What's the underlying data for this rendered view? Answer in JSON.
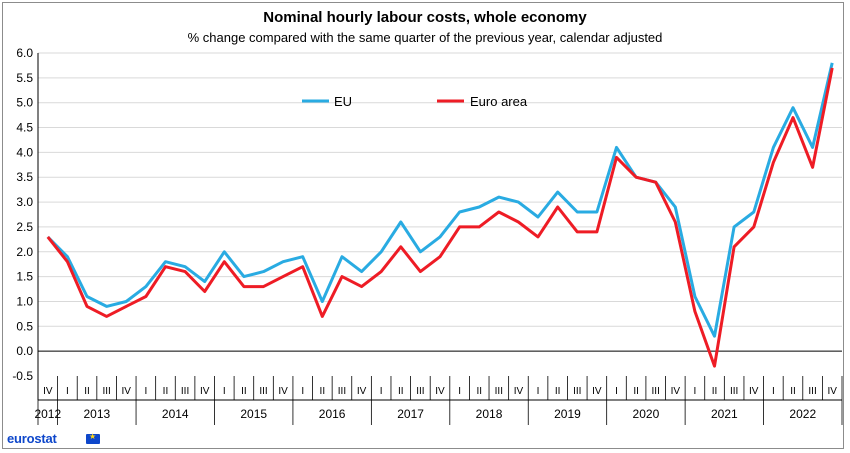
{
  "chart_data": {
    "type": "line",
    "title": "Nominal hourly labour costs, whole economy",
    "subtitle": "% change compared with the same quarter of the previous year, calendar adjusted",
    "ylim": [
      -0.5,
      6.0
    ],
    "yticks": [
      "6.0",
      "5.5",
      "5.0",
      "4.5",
      "4.0",
      "3.5",
      "3.0",
      "2.5",
      "2.0",
      "1.5",
      "1.0",
      "0.5",
      "0.0",
      "-0.5"
    ],
    "grid": "horizontal",
    "legend_placement": "top-center",
    "quarter_labels": [
      "IV",
      "I",
      "II",
      "III",
      "IV",
      "I",
      "II",
      "III",
      "IV",
      "I",
      "II",
      "III",
      "IV",
      "I",
      "II",
      "III",
      "IV",
      "I",
      "II",
      "III",
      "IV",
      "I",
      "II",
      "III",
      "IV",
      "I",
      "II",
      "III",
      "IV",
      "I",
      "II",
      "III",
      "IV",
      "I",
      "II",
      "III",
      "IV",
      "I",
      "II",
      "III",
      "IV"
    ],
    "year_labels": [
      "2012",
      "2013",
      "2014",
      "2015",
      "2016",
      "2017",
      "2018",
      "2019",
      "2020",
      "2021",
      "2022"
    ],
    "series": [
      {
        "name": "EU",
        "color": "#29abe2",
        "values": [
          2.3,
          1.9,
          1.1,
          0.9,
          1.0,
          1.3,
          1.8,
          1.7,
          1.4,
          2.0,
          1.5,
          1.6,
          1.8,
          1.9,
          1.0,
          1.9,
          1.6,
          2.0,
          2.6,
          2.0,
          2.3,
          2.8,
          2.9,
          3.1,
          3.0,
          2.7,
          3.2,
          2.8,
          2.8,
          4.1,
          3.5,
          3.4,
          2.9,
          1.1,
          0.3,
          2.5,
          2.8,
          4.1,
          4.9,
          4.1,
          5.8
        ]
      },
      {
        "name": "Euro area",
        "color": "#ee1c25",
        "values": [
          2.3,
          1.8,
          0.9,
          0.7,
          0.9,
          1.1,
          1.7,
          1.6,
          1.2,
          1.8,
          1.3,
          1.3,
          1.5,
          1.7,
          0.7,
          1.5,
          1.3,
          1.6,
          2.1,
          1.6,
          1.9,
          2.5,
          2.5,
          2.8,
          2.6,
          2.3,
          2.9,
          2.4,
          2.4,
          3.9,
          3.5,
          3.4,
          2.6,
          0.8,
          -0.3,
          2.1,
          2.5,
          3.8,
          4.7,
          3.7,
          5.7
        ]
      }
    ]
  },
  "footer": {
    "logo_text": "eurostat"
  }
}
